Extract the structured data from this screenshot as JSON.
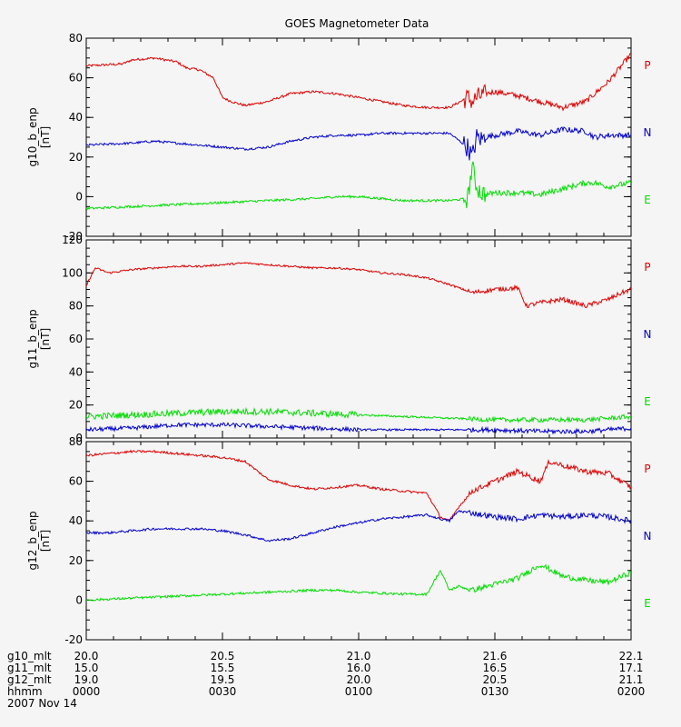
{
  "title": "GOES Magnetometer Data",
  "colors": {
    "P": "#dd0000",
    "N": "#0000cc",
    "E": "#00dd00",
    "axis": "#000000",
    "background": "#f5f5f5"
  },
  "chart_data": [
    {
      "type": "line",
      "name": "g10",
      "ylabel": "g10_b_enp",
      "yunits": "[nT]",
      "ylim": [
        -20,
        80
      ],
      "yticks": [
        "-20",
        "0",
        "20",
        "40",
        "60",
        "80"
      ],
      "xlim": [
        0,
        120
      ],
      "series": [
        {
          "name": "P",
          "color": "#dd0000",
          "x": [
            0,
            8,
            10,
            15,
            20,
            22,
            25,
            28,
            30,
            32,
            35,
            40,
            45,
            50,
            55,
            60,
            65,
            70,
            75,
            80,
            84,
            85,
            86,
            87,
            88,
            90,
            95,
            100,
            105,
            110,
            112,
            115,
            120
          ],
          "values": [
            66,
            67,
            69,
            70,
            68,
            65,
            64,
            60,
            50,
            48,
            46,
            48,
            52,
            53,
            52,
            50,
            48,
            46,
            45,
            45,
            50,
            48,
            50,
            51,
            52,
            53,
            51,
            48,
            45,
            48,
            52,
            58,
            72
          ]
        },
        {
          "name": "N",
          "color": "#0000cc",
          "x": [
            0,
            10,
            15,
            20,
            25,
            30,
            35,
            40,
            45,
            50,
            55,
            60,
            65,
            70,
            75,
            80,
            84,
            85,
            86,
            87,
            88,
            90,
            95,
            100,
            105,
            110,
            112,
            115,
            120
          ],
          "values": [
            26,
            27,
            28,
            27,
            26,
            25,
            24,
            25,
            28,
            30,
            31,
            31,
            32,
            32,
            32,
            32,
            25,
            20,
            30,
            29,
            30,
            31,
            33,
            31,
            34,
            33,
            30,
            31,
            31
          ]
        },
        {
          "name": "E",
          "color": "#00dd00",
          "x": [
            0,
            10,
            20,
            30,
            40,
            50,
            55,
            60,
            65,
            70,
            75,
            80,
            84,
            85,
            86,
            87,
            88,
            90,
            95,
            100,
            105,
            110,
            112,
            115,
            120
          ],
          "values": [
            -6,
            -5,
            -4,
            -3,
            -2,
            -1,
            0,
            0,
            -1,
            -2,
            -2,
            -2,
            -1,
            15,
            5,
            2,
            1,
            2,
            2,
            1,
            4,
            7,
            7,
            5,
            7
          ]
        }
      ]
    },
    {
      "type": "line",
      "name": "g11",
      "ylabel": "g11_b_enp",
      "yunits": "[nT]",
      "ylim": [
        0,
        120
      ],
      "yticks": [
        "0",
        "20",
        "40",
        "60",
        "80",
        "100",
        "120"
      ],
      "xlim": [
        0,
        120
      ],
      "series": [
        {
          "name": "P",
          "color": "#dd0000",
          "x": [
            0,
            1,
            2,
            5,
            10,
            15,
            20,
            25,
            30,
            35,
            40,
            45,
            50,
            55,
            60,
            65,
            70,
            75,
            80,
            85,
            90,
            95,
            97,
            100,
            105,
            110,
            115,
            118,
            120
          ],
          "values": [
            92,
            98,
            103,
            100,
            102,
            103,
            104,
            104,
            105,
            106,
            105,
            104,
            103,
            103,
            102,
            100,
            99,
            97,
            93,
            88,
            90,
            91,
            80,
            82,
            84,
            80,
            84,
            88,
            90
          ]
        },
        {
          "name": "N",
          "color": "#0000cc",
          "x": [
            0,
            10,
            20,
            30,
            40,
            50,
            60,
            70,
            80,
            90,
            100,
            110,
            115,
            120
          ],
          "values": [
            5,
            6,
            8,
            8,
            7,
            6,
            5,
            5,
            5,
            5,
            4,
            4,
            5,
            6
          ]
        },
        {
          "name": "E",
          "color": "#00dd00",
          "x": [
            0,
            10,
            20,
            30,
            40,
            50,
            60,
            70,
            80,
            90,
            100,
            110,
            115,
            120
          ],
          "values": [
            13,
            14,
            15,
            16,
            16,
            15,
            14,
            13,
            12,
            11,
            11,
            11,
            12,
            13
          ]
        }
      ]
    },
    {
      "type": "line",
      "name": "g12",
      "ylabel": "g12_b_enp",
      "yunits": "[nT]",
      "ylim": [
        -20,
        80
      ],
      "yticks": [
        "-20",
        "0",
        "20",
        "40",
        "60",
        "80"
      ],
      "xlim": [
        0,
        120
      ],
      "series": [
        {
          "name": "P",
          "color": "#dd0000",
          "x": [
            0,
            5,
            10,
            15,
            20,
            25,
            30,
            35,
            40,
            45,
            50,
            55,
            60,
            65,
            70,
            75,
            78,
            80,
            82,
            85,
            90,
            95,
            100,
            102,
            105,
            110,
            115,
            120
          ],
          "values": [
            73,
            74,
            75,
            75,
            74,
            73,
            72,
            70,
            61,
            58,
            56,
            57,
            58,
            56,
            55,
            54,
            42,
            40,
            47,
            55,
            60,
            65,
            60,
            70,
            68,
            65,
            64,
            57
          ]
        },
        {
          "name": "N",
          "color": "#0000cc",
          "x": [
            0,
            5,
            10,
            15,
            20,
            25,
            30,
            35,
            40,
            45,
            50,
            55,
            60,
            65,
            70,
            75,
            78,
            80,
            82,
            85,
            90,
            95,
            100,
            105,
            110,
            115,
            120
          ],
          "values": [
            34,
            34,
            35,
            36,
            36,
            36,
            35,
            33,
            30,
            31,
            34,
            37,
            39,
            41,
            42,
            43,
            41,
            40,
            45,
            44,
            42,
            41,
            43,
            42,
            43,
            42,
            40
          ]
        },
        {
          "name": "E",
          "color": "#00dd00",
          "x": [
            0,
            10,
            20,
            30,
            40,
            50,
            55,
            60,
            70,
            75,
            78,
            80,
            82,
            85,
            90,
            95,
            100,
            105,
            110,
            115,
            120
          ],
          "values": [
            0,
            1,
            2,
            3,
            4,
            5,
            5,
            4,
            3,
            3,
            15,
            5,
            7,
            5,
            8,
            11,
            18,
            12,
            10,
            9,
            14
          ]
        }
      ]
    }
  ],
  "legend": [
    "P",
    "N",
    "E"
  ],
  "xaxis": {
    "tick_positions": [
      0,
      30,
      60,
      90,
      120
    ],
    "rows": [
      {
        "label": "g10_mlt",
        "values": [
          "20.0",
          "20.5",
          "21.0",
          "21.6",
          "22.1"
        ]
      },
      {
        "label": "g11_mlt",
        "values": [
          "15.0",
          "15.5",
          "16.0",
          "16.5",
          "17.1"
        ]
      },
      {
        "label": "g12_mlt",
        "values": [
          "19.0",
          "19.5",
          "20.0",
          "20.5",
          "21.1"
        ]
      },
      {
        "label": "hhmm",
        "values": [
          "0000",
          "0030",
          "0100",
          "0130",
          "0200"
        ]
      }
    ],
    "date": "2007 Nov 14"
  }
}
